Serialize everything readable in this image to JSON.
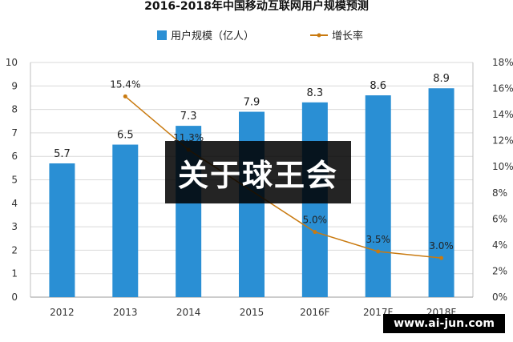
{
  "chart_data": {
    "type": "bar",
    "title": "2016-2018年中国移动互联网用户规模预测",
    "categories": [
      "2012",
      "2013",
      "2014",
      "2015",
      "2016F",
      "2017F",
      "2018F"
    ],
    "series": [
      {
        "name": "用户规模（亿人）",
        "type": "bar",
        "axis": "left",
        "color": "#2a8fd4",
        "values": [
          5.7,
          6.5,
          7.3,
          7.9,
          8.3,
          8.6,
          8.9
        ],
        "labels": [
          "5.7",
          "6.5",
          "7.3",
          "7.9",
          "8.3",
          "8.6",
          "8.9"
        ]
      },
      {
        "name": "增长率",
        "type": "line",
        "axis": "right",
        "color": "#c97a10",
        "values": [
          null,
          15.4,
          11.3,
          null,
          5.0,
          3.5,
          3.0
        ],
        "labels": [
          "",
          "15.4%",
          "11.3%",
          "",
          "5.0%",
          "3.5%",
          "3.0%"
        ]
      }
    ],
    "y_left": {
      "min": 0,
      "max": 10,
      "ticks": [
        0,
        1,
        2,
        3,
        4,
        5,
        6,
        7,
        8,
        9,
        10
      ],
      "tick_labels": [
        "0",
        "1",
        "2",
        "3",
        "4",
        "5",
        "6",
        "7",
        "8",
        "9",
        "10"
      ]
    },
    "y_right": {
      "min": 0,
      "max": 18,
      "ticks": [
        0,
        2,
        4,
        6,
        8,
        10,
        12,
        14,
        16,
        18
      ],
      "tick_labels": [
        "0%",
        "2%",
        "4%",
        "6%",
        "8%",
        "10%",
        "12%",
        "14%",
        "16%",
        "18%"
      ]
    },
    "grid": true,
    "legend_position": "top-center"
  },
  "overlay": {
    "banner_text": "关于球王会",
    "url_text": "www.ai-jun.com"
  }
}
